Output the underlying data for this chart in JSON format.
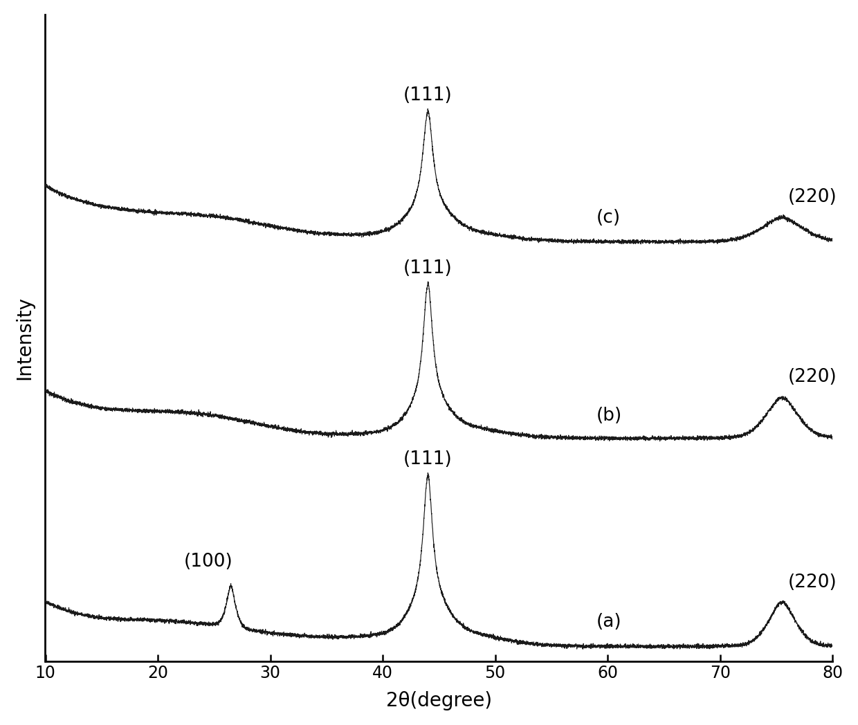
{
  "xlabel": "2θ(degree)",
  "ylabel": "Intensity",
  "xlim": [
    10,
    80
  ],
  "ylim": [
    -0.02,
    1.1
  ],
  "xticks": [
    10,
    20,
    30,
    40,
    50,
    60,
    70,
    80
  ],
  "background_color": "#ffffff",
  "line_color": "#1a1a1a",
  "label_fontsize": 20,
  "tick_fontsize": 17,
  "annotation_fontsize": 19,
  "offsets": [
    0.0,
    0.36,
    0.7
  ],
  "peak_scale": [
    0.3,
    0.27,
    0.23
  ],
  "seed": 42
}
